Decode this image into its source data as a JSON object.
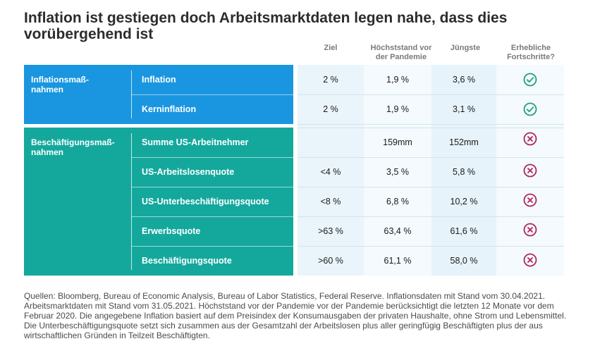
{
  "title": "Inflation ist gestiegen doch Arbeitsmarktdaten legen nahe, dass dies vorübergehend ist",
  "columns": {
    "target": "Ziel",
    "peak": "Höchststand vor der Pandemie",
    "latest": "Jüngste",
    "progress": "Erhebliche Fortschritte?"
  },
  "sections": [
    {
      "label": "Inflationsmaß-nahmen",
      "rows": [
        {
          "label": "Inflation",
          "target": "2 %",
          "peak": "1,9 %",
          "latest": "3,6 %",
          "progress": "check-icon"
        },
        {
          "label": "Kerninflation",
          "target": "2 %",
          "peak": "1,9 %",
          "latest": "3,1 %",
          "progress": "check-icon"
        }
      ]
    },
    {
      "label": "Beschäftigungsmaß-nahmen",
      "rows": [
        {
          "label": "Summe US-Arbeitnehmer",
          "target": "",
          "peak": "159mm",
          "latest": "152mm",
          "progress": "x-circle-icon"
        },
        {
          "label": "US-Arbeitslosenquote",
          "target": "<4 %",
          "peak": "3,5 %",
          "latest": "5,8 %",
          "progress": "x-circle-icon"
        },
        {
          "label": "US-Unterbeschäftigungsquote",
          "target": "<8 %",
          "peak": "6,8 %",
          "latest": "10,2 %",
          "progress": "x-circle-icon"
        },
        {
          "label": "Erwerbsquote",
          "target": ">63 %",
          "peak": "63,4 %",
          "latest": "61,6 %",
          "progress": "x-circle-icon"
        },
        {
          "label": "Beschäftigungsquote",
          "target": ">60 %",
          "peak": "61,1 %",
          "latest": "58,0 %",
          "progress": "x-circle-icon"
        }
      ]
    }
  ],
  "footnote": "Quellen: Bloomberg, Bureau of Economic Analysis, Bureau of Labor Statistics, Federal Reserve. Inflationsdaten mit Stand vom 30.04.2021. Arbeitsmarktdaten mit Stand vom 31.05.2021. Höchststand vor der Pandemie vor der Pandemie berücksichtigt die letzten 12 Monate vor dem Februar 2020. Die angegebene Inflation basiert auf dem Preisindex der Konsumausgaben der privaten Haushalte, ohne Strom und Lebensmittel. Die Unterbeschäftigungsquote setzt sich zusammen aus der Gesamtzahl der Arbeitslosen plus aller geringfügig Beschäftigten plus der aus wirtschaftlichen Gründen in Teilzeit Beschäftigten.",
  "colors": {
    "inflation": "#1a96e0",
    "employment": "#14a89d",
    "check": "#1f9e86",
    "cross": "#b0245a"
  }
}
